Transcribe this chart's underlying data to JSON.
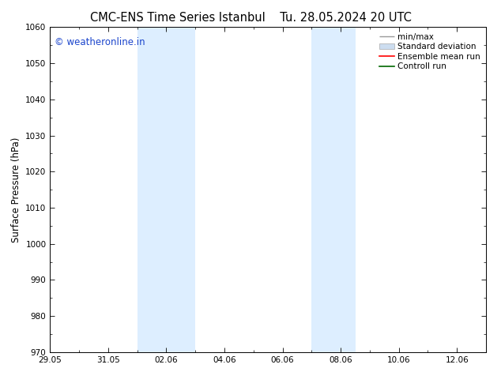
{
  "title_left": "CMC-ENS Time Series Istanbul",
  "title_right": "Tu. 28.05.2024 20 UTC",
  "ylabel": "Surface Pressure (hPa)",
  "ylim": [
    970,
    1060
  ],
  "yticks": [
    970,
    980,
    990,
    1000,
    1010,
    1020,
    1030,
    1040,
    1050,
    1060
  ],
  "xtick_labels": [
    "29.05",
    "31.05",
    "02.06",
    "04.06",
    "06.06",
    "08.06",
    "10.06",
    "12.06"
  ],
  "xtick_positions": [
    0,
    2,
    4,
    6,
    8,
    10,
    12,
    14
  ],
  "xlim": [
    0,
    15
  ],
  "shaded_regions": [
    {
      "start": 3.0,
      "end": 5.0
    },
    {
      "start": 9.0,
      "end": 10.5
    }
  ],
  "shaded_color": "#ddeeff",
  "watermark_text": "© weatheronline.in",
  "watermark_color": "#1a44cc",
  "background_color": "#ffffff",
  "title_fontsize": 10.5,
  "tick_fontsize": 7.5,
  "ylabel_fontsize": 8.5,
  "watermark_fontsize": 8.5,
  "legend_fontsize": 7.5,
  "minmax_color": "#999999",
  "stddev_color": "#ccddf0",
  "ensemble_color": "#ff0000",
  "control_color": "#006600"
}
